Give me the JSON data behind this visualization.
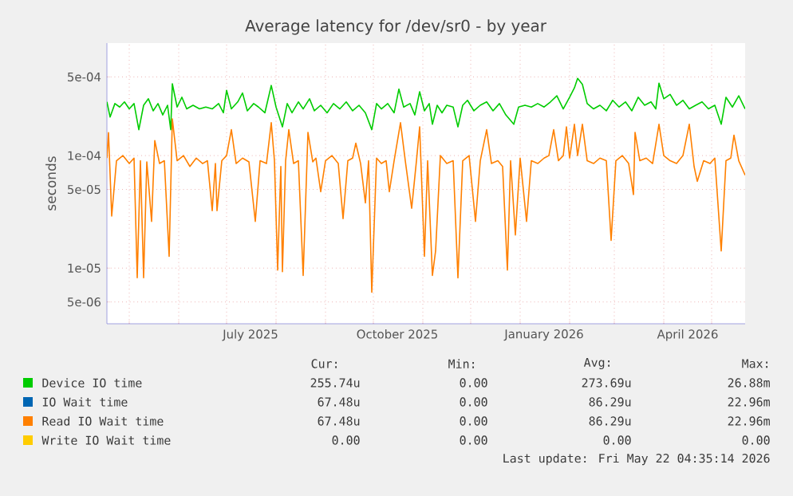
{
  "chart_data": {
    "type": "line",
    "title": "Average latency for /dev/sr0 - by year",
    "ylabel": "seconds",
    "log": true,
    "grid": true,
    "legend": "bottom",
    "xlim": [
      "2025-04-17",
      "2026-05-22"
    ],
    "ylim": [
      3.2e-06,
      0.001
    ],
    "xticks": [
      {
        "value": "2025-05-01",
        "label": null
      },
      {
        "value": "2025-06-01",
        "label": null
      },
      {
        "value": "2025-07-01",
        "label": null
      },
      {
        "value": "2025-07-16",
        "label": "July 2025"
      },
      {
        "value": "2025-08-01",
        "label": null
      },
      {
        "value": "2025-09-01",
        "label": null
      },
      {
        "value": "2025-10-01",
        "label": null
      },
      {
        "value": "2025-10-16",
        "label": "October 2025"
      },
      {
        "value": "2025-11-01",
        "label": null
      },
      {
        "value": "2025-12-01",
        "label": null
      },
      {
        "value": "2026-01-01",
        "label": null
      },
      {
        "value": "2026-01-16",
        "label": "January 2026"
      },
      {
        "value": "2026-02-01",
        "label": null
      },
      {
        "value": "2026-03-01",
        "label": null
      },
      {
        "value": "2026-04-01",
        "label": null
      },
      {
        "value": "2026-04-16",
        "label": "April 2026"
      },
      {
        "value": "2026-05-01",
        "label": null
      }
    ],
    "yticks": [
      {
        "value": 5e-06,
        "label": "5e-06"
      },
      {
        "value": 1e-05,
        "label": "1e-05"
      },
      {
        "value": 5e-05,
        "label": "5e-05"
      },
      {
        "value": 0.0001,
        "label": "1e-04"
      },
      {
        "value": 0.0005,
        "label": "5e-04"
      }
    ],
    "series": [
      {
        "name": "Device IO time",
        "color": "#00cc00",
        "x": [
          "2025-04-17",
          "2025-04-19",
          "2025-04-22",
          "2025-04-25",
          "2025-04-28",
          "2025-05-01",
          "2025-05-04",
          "2025-05-07",
          "2025-05-10",
          "2025-05-13",
          "2025-05-16",
          "2025-05-19",
          "2025-05-22",
          "2025-05-25",
          "2025-05-27",
          "2025-05-28",
          "2025-05-31",
          "2025-06-03",
          "2025-06-06",
          "2025-06-10",
          "2025-06-14",
          "2025-06-18",
          "2025-06-22",
          "2025-06-26",
          "2025-06-29",
          "2025-07-01",
          "2025-07-04",
          "2025-07-08",
          "2025-07-11",
          "2025-07-14",
          "2025-07-18",
          "2025-07-21",
          "2025-07-25",
          "2025-07-29",
          "2025-08-01",
          "2025-08-05",
          "2025-08-08",
          "2025-08-11",
          "2025-08-15",
          "2025-08-18",
          "2025-08-22",
          "2025-08-25",
          "2025-08-29",
          "2025-09-02",
          "2025-09-06",
          "2025-09-10",
          "2025-09-14",
          "2025-09-18",
          "2025-09-22",
          "2025-09-26",
          "2025-09-30",
          "2025-10-03",
          "2025-10-06",
          "2025-10-10",
          "2025-10-14",
          "2025-10-17",
          "2025-10-20",
          "2025-10-24",
          "2025-10-27",
          "2025-10-30",
          "2025-11-02",
          "2025-11-05",
          "2025-11-07",
          "2025-11-10",
          "2025-11-13",
          "2025-11-16",
          "2025-11-20",
          "2025-11-23",
          "2025-11-26",
          "2025-11-29",
          "2025-12-03",
          "2025-12-07",
          "2025-12-11",
          "2025-12-15",
          "2025-12-19",
          "2025-12-23",
          "2025-12-28",
          "2025-12-31",
          "2026-01-04",
          "2026-01-08",
          "2026-01-12",
          "2026-01-16",
          "2026-01-20",
          "2026-01-24",
          "2026-01-28",
          "2026-02-01",
          "2026-02-04",
          "2026-02-06",
          "2026-02-09",
          "2026-02-12",
          "2026-02-16",
          "2026-02-20",
          "2026-02-24",
          "2026-02-28",
          "2026-03-04",
          "2026-03-08",
          "2026-03-12",
          "2026-03-16",
          "2026-03-20",
          "2026-03-24",
          "2026-03-27",
          "2026-03-29",
          "2026-04-01",
          "2026-04-05",
          "2026-04-09",
          "2026-04-13",
          "2026-04-17",
          "2026-04-21",
          "2026-04-25",
          "2026-04-29",
          "2026-05-03",
          "2026-05-07",
          "2026-05-10",
          "2026-05-14",
          "2026-05-18",
          "2026-05-22"
        ],
        "values": [
          0.0003,
          0.00022,
          0.00029,
          0.00027,
          0.0003,
          0.00026,
          0.00029,
          0.00017,
          0.00028,
          0.00032,
          0.00025,
          0.00029,
          0.00023,
          0.00028,
          0.00017,
          0.000435,
          0.00027,
          0.00033,
          0.00026,
          0.00028,
          0.00026,
          0.00027,
          0.00026,
          0.00029,
          0.00024,
          0.00038,
          0.00026,
          0.0003,
          0.00036,
          0.00025,
          0.00029,
          0.00027,
          0.00024,
          0.00042,
          0.00027,
          0.00018,
          0.00029,
          0.00024,
          0.0003,
          0.00026,
          0.00032,
          0.00025,
          0.00028,
          0.00024,
          0.00029,
          0.00026,
          0.0003,
          0.00025,
          0.00028,
          0.00024,
          0.00017,
          0.00029,
          0.00026,
          0.00029,
          0.00024,
          0.00039,
          0.00027,
          0.00029,
          0.00023,
          0.00037,
          0.00025,
          0.00029,
          0.00019,
          0.00028,
          0.00024,
          0.00028,
          0.00027,
          0.00018,
          0.00028,
          0.00031,
          0.00025,
          0.00028,
          0.0003,
          0.00025,
          0.00029,
          0.00023,
          0.00019,
          0.00027,
          0.00028,
          0.00027,
          0.00029,
          0.00027,
          0.0003,
          0.00034,
          0.00026,
          0.00033,
          0.0004,
          0.000485,
          0.00043,
          0.00029,
          0.00026,
          0.00028,
          0.00025,
          0.00031,
          0.00027,
          0.0003,
          0.00025,
          0.00033,
          0.00028,
          0.0003,
          0.00026,
          0.00044,
          0.00032,
          0.00035,
          0.00028,
          0.00031,
          0.00026,
          0.00028,
          0.0003,
          0.00026,
          0.00028,
          0.00019,
          0.00033,
          0.00027,
          0.00034,
          0.00026
        ]
      },
      {
        "name": "IO Wait time",
        "color": "#0066b3"
      },
      {
        "name": "Read IO Wait time",
        "color": "#ff8000",
        "x": [
          "2025-04-17",
          "2025-04-18",
          "2025-04-20",
          "2025-04-23",
          "2025-04-27",
          "2025-05-01",
          "2025-05-04",
          "2025-05-06",
          "2025-05-08",
          "2025-05-10",
          "2025-05-12",
          "2025-05-15",
          "2025-05-17",
          "2025-05-20",
          "2025-05-23",
          "2025-05-26",
          "2025-05-28",
          "2025-05-31",
          "2025-06-04",
          "2025-06-08",
          "2025-06-12",
          "2025-06-16",
          "2025-06-19",
          "2025-06-22",
          "2025-06-24",
          "2025-06-25",
          "2025-06-28",
          "2025-07-01",
          "2025-07-04",
          "2025-07-07",
          "2025-07-11",
          "2025-07-15",
          "2025-07-19",
          "2025-07-22",
          "2025-07-26",
          "2025-07-29",
          "2025-07-31",
          "2025-08-02",
          "2025-08-04",
          "2025-08-05",
          "2025-08-07",
          "2025-08-09",
          "2025-08-12",
          "2025-08-15",
          "2025-08-18",
          "2025-08-21",
          "2025-08-24",
          "2025-08-26",
          "2025-08-29",
          "2025-09-01",
          "2025-09-05",
          "2025-09-09",
          "2025-09-12",
          "2025-09-15",
          "2025-09-18",
          "2025-09-20",
          "2025-09-23",
          "2025-09-26",
          "2025-09-28",
          "2025-09-30",
          "2025-10-03",
          "2025-10-06",
          "2025-10-09",
          "2025-10-11",
          "2025-10-14",
          "2025-10-18",
          "2025-10-21",
          "2025-10-25",
          "2025-10-28",
          "2025-10-30",
          "2025-11-02",
          "2025-11-04",
          "2025-11-07",
          "2025-11-09",
          "2025-11-12",
          "2025-11-16",
          "2025-11-20",
          "2025-11-23",
          "2025-11-26",
          "2025-11-30",
          "2025-12-04",
          "2025-12-07",
          "2025-12-11",
          "2025-12-14",
          "2025-12-18",
          "2025-12-21",
          "2025-12-24",
          "2025-12-26",
          "2025-12-29",
          "2026-01-01",
          "2026-01-05",
          "2026-01-08",
          "2026-01-12",
          "2026-01-16",
          "2026-01-19",
          "2026-01-22",
          "2026-01-25",
          "2026-01-28",
          "2026-01-30",
          "2026-02-01",
          "2026-02-04",
          "2026-02-06",
          "2026-02-09",
          "2026-02-12",
          "2026-02-16",
          "2026-02-20",
          "2026-02-24",
          "2026-02-27",
          "2026-03-02",
          "2026-03-06",
          "2026-03-10",
          "2026-03-13",
          "2026-03-14",
          "2026-03-17",
          "2026-03-21",
          "2026-03-25",
          "2026-03-29",
          "2026-04-01",
          "2026-04-05",
          "2026-04-09",
          "2026-04-13",
          "2026-04-17",
          "2026-04-20",
          "2026-04-22",
          "2026-04-26",
          "2026-04-30",
          "2026-05-03",
          "2026-05-07",
          "2026-05-10",
          "2026-05-13",
          "2026-05-15",
          "2026-05-18",
          "2026-05-22"
        ],
        "values": [
          9.5e-05,
          0.00016,
          2.9e-05,
          9e-05,
          0.0001,
          8.5e-05,
          9.5e-05,
          8.2e-06,
          9e-05,
          8.2e-06,
          8.8e-05,
          2.6e-05,
          0.000136,
          8.5e-05,
          9e-05,
          1.27e-05,
          0.000212,
          9e-05,
          0.0001,
          8e-05,
          9.5e-05,
          8.5e-05,
          9e-05,
          3.24e-05,
          8.5e-05,
          3.24e-05,
          9e-05,
          0.0001,
          0.00017,
          8.5e-05,
          9.5e-05,
          8.8e-05,
          2.6e-05,
          9e-05,
          8.5e-05,
          0.000196,
          9e-05,
          9.6e-06,
          8e-05,
          9.3e-06,
          9e-05,
          0.00017,
          8.5e-05,
          9e-05,
          8.6e-06,
          0.000161,
          8.8e-05,
          9.5e-05,
          4.77e-05,
          9e-05,
          0.0001,
          8.5e-05,
          2.75e-05,
          9e-05,
          9.5e-05,
          0.000129,
          8.5e-05,
          3.8e-05,
          9e-05,
          6.1e-06,
          9.5e-05,
          8.5e-05,
          9e-05,
          4.77e-05,
          9e-05,
          0.000196,
          9e-05,
          3.4e-05,
          9e-05,
          0.00018,
          1.27e-05,
          9e-05,
          8.6e-06,
          1.42e-05,
          0.0001,
          8.5e-05,
          9e-05,
          8.2e-06,
          9e-05,
          0.0001,
          2.6e-05,
          9e-05,
          0.00017,
          8.5e-05,
          9e-05,
          8e-05,
          9.6e-06,
          9e-05,
          1.97e-05,
          9.5e-05,
          2.6e-05,
          9e-05,
          8.5e-05,
          9.5e-05,
          0.0001,
          0.00017,
          9e-05,
          0.0001,
          0.00018,
          9.5e-05,
          0.00019,
          0.0001,
          0.00019,
          9e-05,
          8.5e-05,
          9.5e-05,
          9e-05,
          1.76e-05,
          9e-05,
          0.0001,
          8.5e-05,
          4.5e-05,
          0.000161,
          9e-05,
          9.5e-05,
          8.5e-05,
          0.00019,
          0.0001,
          9e-05,
          8.5e-05,
          0.0001,
          0.00019,
          8e-05,
          5.9e-05,
          9e-05,
          8.5e-05,
          9.5e-05,
          1.42e-05,
          9e-05,
          9.5e-05,
          0.000152,
          9e-05,
          6.7e-05
        ]
      },
      {
        "name": "Write IO Wait time",
        "color": "#ffcc00"
      }
    ],
    "annotations": [
      "Cur:",
      "Min:",
      "Avg:",
      "Max:",
      "255.74u",
      "0.00",
      "273.69u",
      "26.88m",
      "67.48u",
      "0.00",
      "86.29u",
      "22.96m",
      "67.48u",
      "0.00",
      "86.29u",
      "22.96m",
      "0.00",
      "0.00",
      "0.00",
      "0.00",
      "Last update: Fri May 22 04:35:14 2026"
    ]
  }
}
